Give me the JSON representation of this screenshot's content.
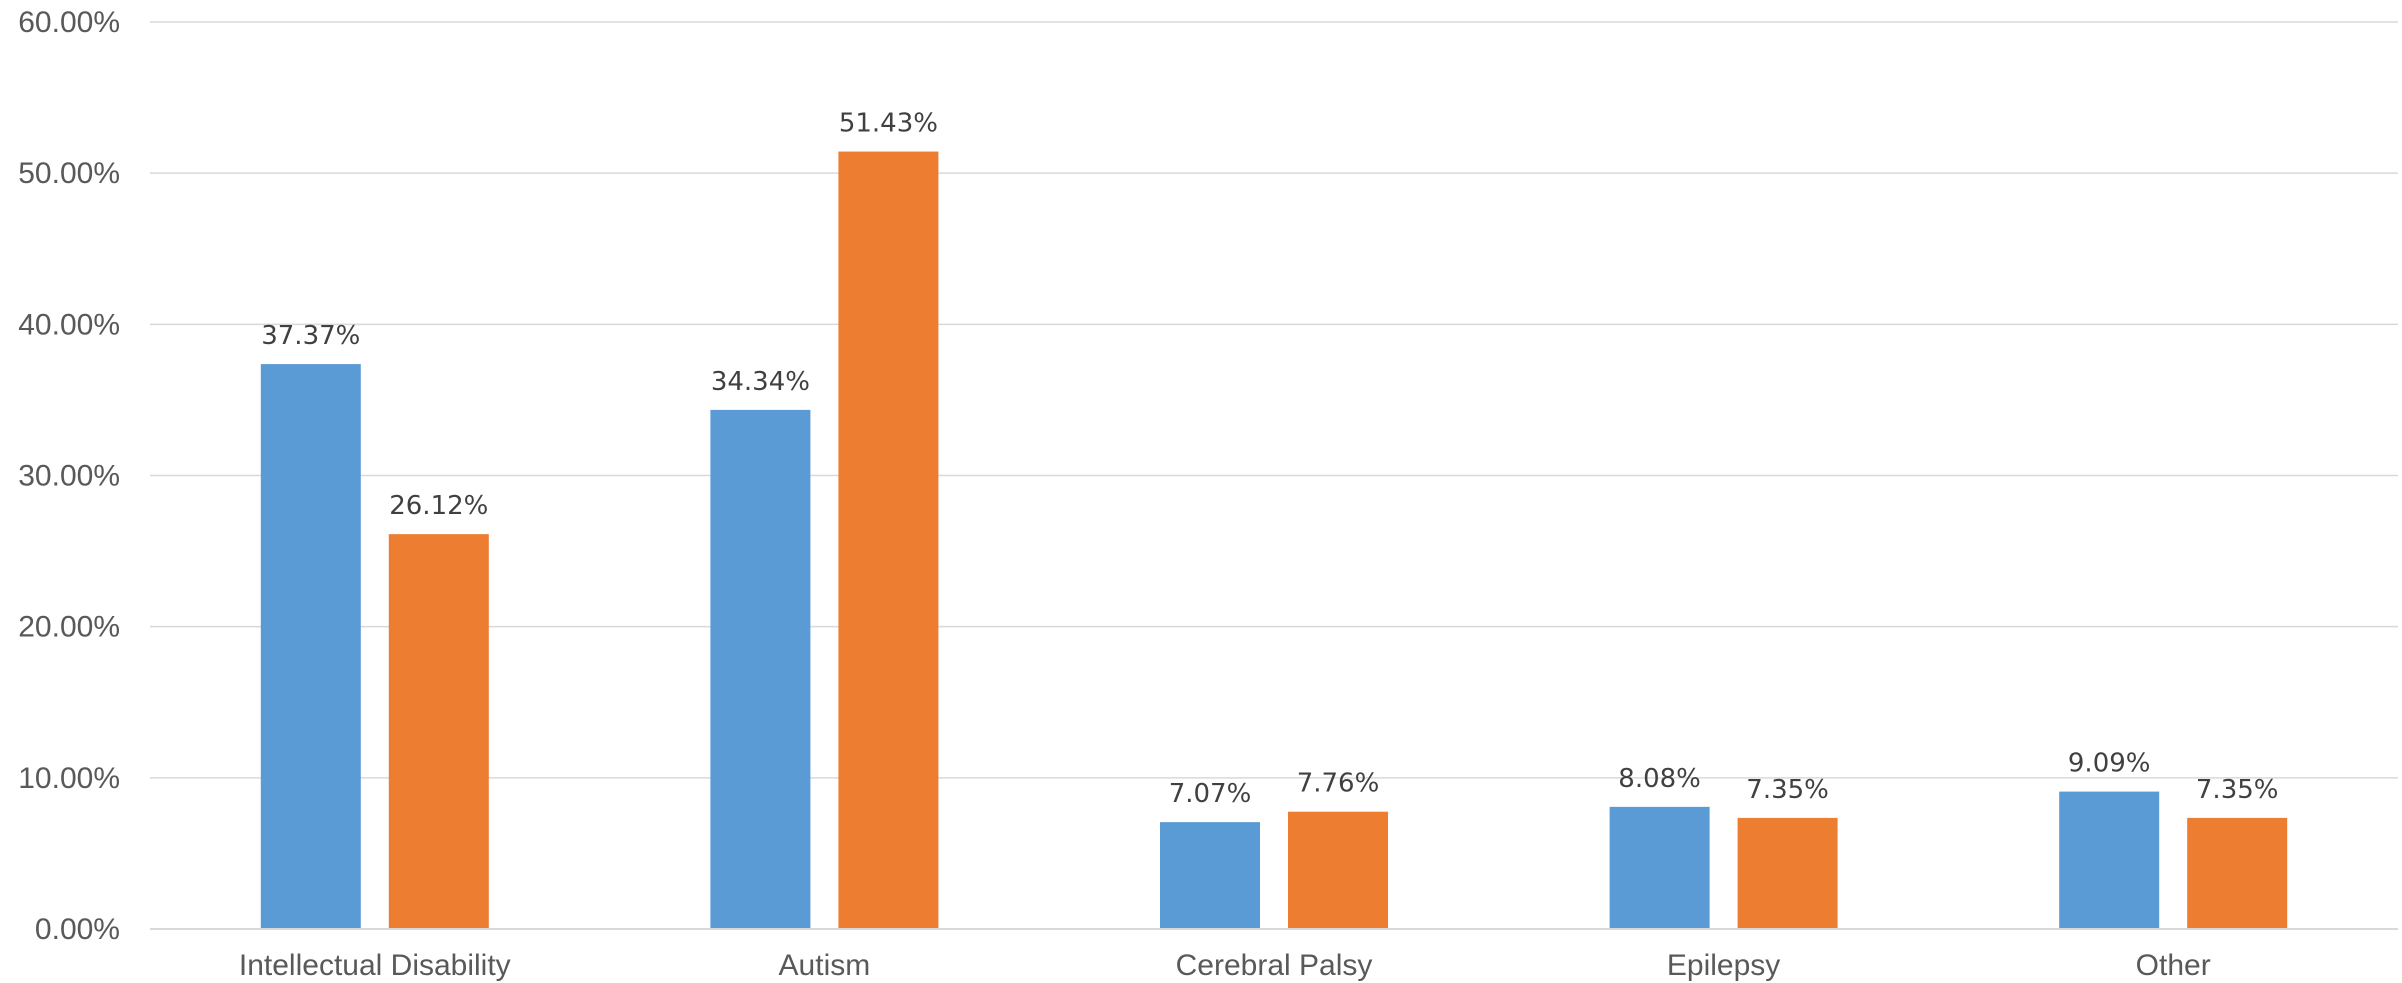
{
  "chart_data": {
    "type": "bar",
    "categories": [
      "Intellectual Disability",
      "Autism",
      "Cerebral Palsy",
      "Epilepsy",
      "Other"
    ],
    "series": [
      {
        "values": [
          37.37,
          34.34,
          7.07,
          8.08,
          9.09
        ],
        "labels": [
          "37.37%",
          "34.34%",
          "7.07%",
          "8.08%",
          "9.09%"
        ],
        "color": "#5B9BD5"
      },
      {
        "values": [
          26.12,
          51.43,
          7.76,
          7.35,
          7.35
        ],
        "labels": [
          "26.12%",
          "51.43%",
          "7.76%",
          "7.35%",
          "7.35%"
        ],
        "color": "#ED7D31"
      }
    ],
    "title": "",
    "xlabel": "",
    "ylabel": "",
    "ylim": [
      0,
      60
    ],
    "yticks": [
      0,
      10,
      20,
      30,
      40,
      50,
      60
    ],
    "ytick_labels": [
      "0.00%",
      "10.00%",
      "20.00%",
      "30.00%",
      "40.00%",
      "50.00%",
      "60.00%"
    ],
    "grid": true,
    "legend": "none",
    "colors": {
      "gridline": "#D9D9D9",
      "axis_text": "#595959",
      "data_label_text": "#404040"
    }
  }
}
